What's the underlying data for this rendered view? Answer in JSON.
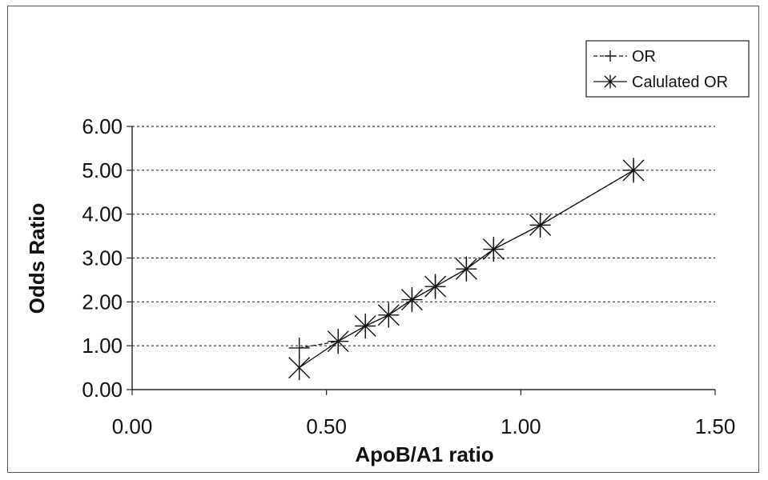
{
  "chart_data": {
    "type": "line",
    "xlabel": "ApoB/A1 ratio",
    "ylabel": "Odds Ratio",
    "xlim": [
      0,
      1.5
    ],
    "ylim": [
      0,
      6
    ],
    "x_ticks": [
      "0.00",
      "0.50",
      "1.00",
      "1.50"
    ],
    "y_ticks": [
      "0.00",
      "1.00",
      "2.00",
      "3.00",
      "4.00",
      "5.00",
      "6.00"
    ],
    "grid": "horizontal dashed",
    "legend_position": "top-right",
    "series": [
      {
        "name": "OR",
        "marker": "plus",
        "line_style": "dashed",
        "x": [
          0.43,
          0.53,
          0.6,
          0.66,
          0.72,
          0.78,
          0.86,
          0.93,
          1.05,
          1.29
        ],
        "y": [
          0.95,
          1.1,
          1.45,
          1.7,
          2.05,
          2.35,
          2.75,
          3.2,
          3.75,
          5.0
        ]
      },
      {
        "name": "Calulated OR",
        "marker": "asterisk",
        "line_style": "solid",
        "x": [
          0.43,
          0.53,
          0.6,
          0.66,
          0.72,
          0.78,
          0.86,
          0.93,
          1.05,
          1.29
        ],
        "y": [
          0.5,
          1.1,
          1.45,
          1.7,
          2.05,
          2.35,
          2.75,
          3.2,
          3.75,
          5.0
        ]
      }
    ]
  }
}
